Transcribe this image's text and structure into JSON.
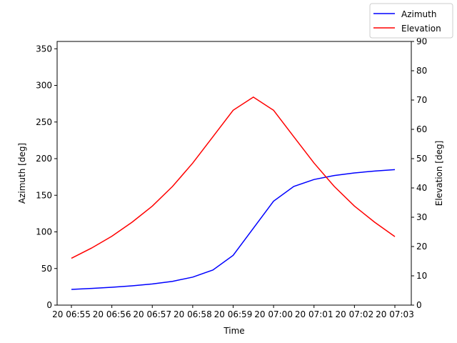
{
  "chart_data": {
    "type": "line",
    "xlabel": "Time",
    "x": [
      "20 06:55",
      "20 06:55:30",
      "20 06:56",
      "20 06:56:30",
      "20 06:57",
      "20 06:57:30",
      "20 06:58",
      "20 06:58:30",
      "20 06:59",
      "20 06:59:30",
      "20 07:00",
      "20 07:00:30",
      "20 07:01",
      "20 07:01:30",
      "20 07:02",
      "20 07:02:30",
      "20 07:03"
    ],
    "x_ticks": [
      "20 06:55",
      "20 06:56",
      "20 06:57",
      "20 06:58",
      "20 06:59",
      "20 07:00",
      "20 07:01",
      "20 07:02",
      "20 07:03"
    ],
    "left_axis": {
      "label": "Azimuth [deg]",
      "ylim": [
        0,
        360
      ],
      "ticks": [
        "0",
        "50",
        "100",
        "150",
        "200",
        "250",
        "300",
        "350"
      ]
    },
    "right_axis": {
      "label": "Elevation [deg]",
      "ylim": [
        0,
        90
      ],
      "ticks": [
        "0",
        "10",
        "20",
        "30",
        "40",
        "50",
        "60",
        "70",
        "80",
        "90"
      ]
    },
    "series": [
      {
        "name": "Azimuth",
        "axis": "left",
        "color": "#0000ff",
        "values": [
          21.5,
          22.8,
          24.4,
          26.3,
          28.9,
          32.5,
          38.2,
          48.0,
          68.0,
          105.0,
          142.0,
          162.0,
          171.5,
          177.0,
          180.5,
          183.0,
          185.0
        ]
      },
      {
        "name": "Elevation",
        "axis": "right",
        "color": "#ff0000",
        "values": [
          16.0,
          19.5,
          23.5,
          28.3,
          33.8,
          40.5,
          48.5,
          57.5,
          66.5,
          71.0,
          66.5,
          57.5,
          48.5,
          40.5,
          33.8,
          28.3,
          23.4
        ]
      }
    ],
    "legend": {
      "placement": "top-right",
      "entries": [
        "Azimuth",
        "Elevation"
      ]
    },
    "grid": false
  }
}
